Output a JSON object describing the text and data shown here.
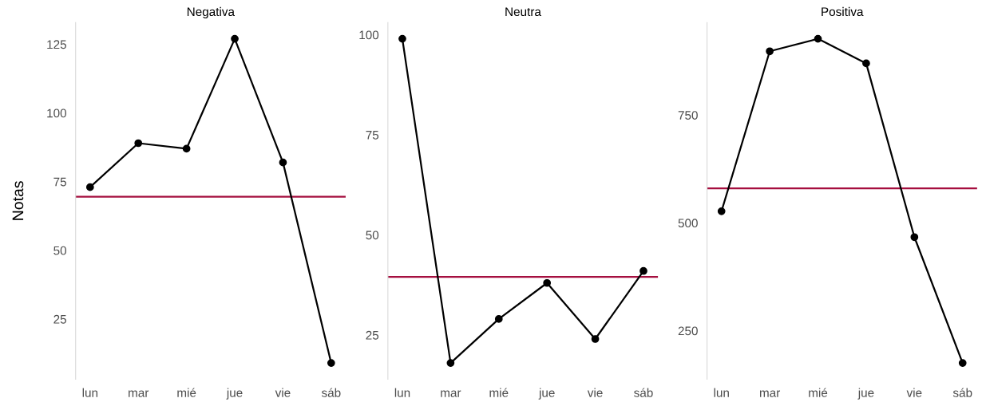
{
  "chart_data": [
    {
      "type": "line",
      "title": "Negativa",
      "ylabel": "Notas",
      "categories": [
        "lun",
        "mar",
        "mié",
        "jue",
        "vie",
        "sáb"
      ],
      "values": [
        73,
        89,
        87,
        127,
        82,
        9
      ],
      "color": "#000000",
      "marker": "circle",
      "ylim": [
        3.1,
        132.9
      ],
      "yticks": [
        25,
        50,
        75,
        100,
        125
      ],
      "grid": false,
      "ref_lines": [
        {
          "axis": "y",
          "value": 69.5,
          "color": "#a50f3f"
        }
      ]
    },
    {
      "type": "line",
      "title": "Neutra",
      "categories": [
        "lun",
        "mar",
        "mié",
        "jue",
        "vie",
        "sáb"
      ],
      "values": [
        99,
        18,
        29,
        38,
        24,
        41
      ],
      "color": "#000000",
      "marker": "circle",
      "ylim": [
        13.95,
        103.05
      ],
      "yticks": [
        25,
        50,
        75,
        100
      ],
      "grid": false,
      "ref_lines": [
        {
          "axis": "y",
          "value": 39.5,
          "color": "#a50f3f"
        }
      ]
    },
    {
      "type": "line",
      "title": "Positiva",
      "categories": [
        "lun",
        "mar",
        "mié",
        "jue",
        "vie",
        "sáb"
      ],
      "values": [
        527,
        898,
        927,
        870,
        467,
        175
      ],
      "color": "#000000",
      "marker": "circle",
      "ylim": [
        137.4,
        964.6
      ],
      "yticks": [
        250,
        500,
        750
      ],
      "grid": false,
      "ref_lines": [
        {
          "axis": "y",
          "value": 580,
          "color": "#a50f3f"
        }
      ]
    }
  ]
}
